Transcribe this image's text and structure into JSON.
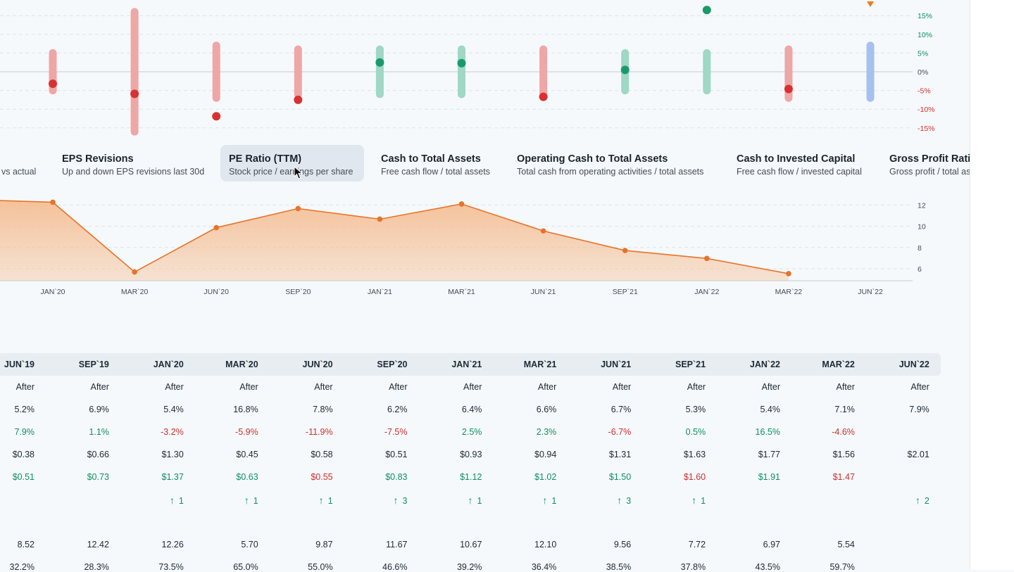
{
  "colors": {
    "pos_dot": "#1a9a6b",
    "pos_bar": "#9fd8c4",
    "neg_dot": "#d9312f",
    "neg_bar": "#efa6a6",
    "future_bar": "#a6c0f0",
    "future_marker": "#f07a20",
    "area_line": "#e8732b",
    "area_fill": "#f5b888",
    "pos_text": "#0f8f5e",
    "neg_text": "#d02d2d"
  },
  "chart_data": [
    {
      "type": "range-dot",
      "y_ticks": [
        "15%",
        "10%",
        "5%",
        "0%",
        "-5%",
        "-10%",
        "-15%"
      ],
      "ylim": [
        -16,
        17
      ],
      "points": [
        {
          "x_index": 0,
          "low": -5,
          "high": 5,
          "value": -3.2,
          "sign": "neg"
        },
        {
          "x_index": 1,
          "low": -16,
          "high": 16,
          "value": -5.9,
          "sign": "neg"
        },
        {
          "x_index": 2,
          "low": -7,
          "high": 7,
          "value": -11.9,
          "sign": "neg"
        },
        {
          "x_index": 3,
          "low": -6,
          "high": 6,
          "value": -7.5,
          "sign": "neg"
        },
        {
          "x_index": 4,
          "low": -6,
          "high": 6,
          "value": 2.5,
          "sign": "pos"
        },
        {
          "x_index": 5,
          "low": -6,
          "high": 6,
          "value": 2.3,
          "sign": "pos"
        },
        {
          "x_index": 6,
          "low": -6,
          "high": 6,
          "value": -6.7,
          "sign": "neg"
        },
        {
          "x_index": 7,
          "low": -5,
          "high": 5,
          "value": 0.5,
          "sign": "pos"
        },
        {
          "x_index": 8,
          "low": -5,
          "high": 5,
          "value": 16.5,
          "sign": "pos"
        },
        {
          "x_index": 9,
          "low": -7,
          "high": 6,
          "value": -4.6,
          "sign": "neg"
        },
        {
          "x_index": 10,
          "low": -7,
          "high": 7,
          "value": null,
          "sign": "future"
        }
      ]
    },
    {
      "type": "area",
      "x": [
        "JAN`20",
        "MAR`20",
        "JUN`20",
        "SEP`20",
        "JAN`21",
        "MAR`21",
        "JUN`21",
        "SEP`21",
        "JAN`22",
        "MAR`22",
        "JUN`22"
      ],
      "y": [
        12.26,
        5.7,
        9.87,
        11.67,
        10.67,
        12.1,
        9.56,
        7.72,
        6.97,
        5.54,
        null
      ],
      "prev_y": 12.42,
      "y_ticks": [
        12,
        10,
        8,
        6
      ],
      "ylim": [
        4.8,
        13.5
      ]
    }
  ],
  "tabs": [
    {
      "title": "",
      "desc": "vs actual"
    },
    {
      "title": "EPS Revisions",
      "desc": "Up and down EPS revisions last 30d"
    },
    {
      "title": "PE Ratio (TTM)",
      "desc": "Stock price / earnings per share",
      "active": true
    },
    {
      "title": "Cash to Total Assets",
      "desc": "Free cash flow / total assets"
    },
    {
      "title": "Operating Cash to Total Assets",
      "desc": "Total cash from operating activities / total assets"
    },
    {
      "title": "Cash to Invested Capital",
      "desc": "Free cash flow / invested capital"
    },
    {
      "title": "Gross Profit Ratio",
      "desc": "Gross profit / total assets"
    }
  ],
  "table": {
    "columns": [
      "JUN`19",
      "SEP`19",
      "JAN`20",
      "MAR`20",
      "JUN`20",
      "SEP`20",
      "JAN`21",
      "MAR`21",
      "JUN`21",
      "SEP`21",
      "JAN`22",
      "MAR`22",
      "JUN`22"
    ],
    "rows": [
      {
        "cells": [
          {
            "t": "After",
            "c": "neu"
          },
          {
            "t": "After",
            "c": "neu"
          },
          {
            "t": "After",
            "c": "neu"
          },
          {
            "t": "After",
            "c": "neu"
          },
          {
            "t": "After",
            "c": "neu"
          },
          {
            "t": "After",
            "c": "neu"
          },
          {
            "t": "After",
            "c": "neu"
          },
          {
            "t": "After",
            "c": "neu"
          },
          {
            "t": "After",
            "c": "neu"
          },
          {
            "t": "After",
            "c": "neu"
          },
          {
            "t": "After",
            "c": "neu"
          },
          {
            "t": "After",
            "c": "neu"
          },
          {
            "t": "After",
            "c": "neu"
          }
        ]
      },
      {
        "cells": [
          {
            "t": "5.2%",
            "c": "neu"
          },
          {
            "t": "6.9%",
            "c": "neu"
          },
          {
            "t": "5.4%",
            "c": "neu"
          },
          {
            "t": "16.8%",
            "c": "neu"
          },
          {
            "t": "7.8%",
            "c": "neu"
          },
          {
            "t": "6.2%",
            "c": "neu"
          },
          {
            "t": "6.4%",
            "c": "neu"
          },
          {
            "t": "6.6%",
            "c": "neu"
          },
          {
            "t": "6.7%",
            "c": "neu"
          },
          {
            "t": "5.3%",
            "c": "neu"
          },
          {
            "t": "5.4%",
            "c": "neu"
          },
          {
            "t": "7.1%",
            "c": "neu"
          },
          {
            "t": "7.9%",
            "c": "neu"
          }
        ]
      },
      {
        "cells": [
          {
            "t": "7.9%",
            "c": "pos"
          },
          {
            "t": "1.1%",
            "c": "pos"
          },
          {
            "t": "-3.2%",
            "c": "neg"
          },
          {
            "t": "-5.9%",
            "c": "neg"
          },
          {
            "t": "-11.9%",
            "c": "neg"
          },
          {
            "t": "-7.5%",
            "c": "neg"
          },
          {
            "t": "2.5%",
            "c": "pos"
          },
          {
            "t": "2.3%",
            "c": "pos"
          },
          {
            "t": "-6.7%",
            "c": "neg"
          },
          {
            "t": "0.5%",
            "c": "pos"
          },
          {
            "t": "16.5%",
            "c": "pos"
          },
          {
            "t": "-4.6%",
            "c": "neg"
          },
          {
            "t": "",
            "c": "neu"
          }
        ]
      },
      {
        "cells": [
          {
            "t": "$0.38",
            "c": "neu"
          },
          {
            "t": "$0.66",
            "c": "neu"
          },
          {
            "t": "$1.30",
            "c": "neu"
          },
          {
            "t": "$0.45",
            "c": "neu"
          },
          {
            "t": "$0.58",
            "c": "neu"
          },
          {
            "t": "$0.51",
            "c": "neu"
          },
          {
            "t": "$0.93",
            "c": "neu"
          },
          {
            "t": "$0.94",
            "c": "neu"
          },
          {
            "t": "$1.31",
            "c": "neu"
          },
          {
            "t": "$1.63",
            "c": "neu"
          },
          {
            "t": "$1.77",
            "c": "neu"
          },
          {
            "t": "$1.56",
            "c": "neu"
          },
          {
            "t": "$2.01",
            "c": "neu"
          }
        ]
      },
      {
        "cells": [
          {
            "t": "$0.51",
            "c": "pos"
          },
          {
            "t": "$0.73",
            "c": "pos"
          },
          {
            "t": "$1.37",
            "c": "pos"
          },
          {
            "t": "$0.63",
            "c": "pos"
          },
          {
            "t": "$0.55",
            "c": "neg"
          },
          {
            "t": "$0.83",
            "c": "pos"
          },
          {
            "t": "$1.12",
            "c": "pos"
          },
          {
            "t": "$1.02",
            "c": "pos"
          },
          {
            "t": "$1.50",
            "c": "pos"
          },
          {
            "t": "$1.60",
            "c": "neg"
          },
          {
            "t": "$1.91",
            "c": "pos"
          },
          {
            "t": "$1.47",
            "c": "neg"
          },
          {
            "t": "",
            "c": "neu"
          }
        ]
      },
      {
        "cells": [
          {
            "t": "",
            "c": "neu"
          },
          {
            "t": "",
            "c": "neu"
          },
          {
            "t": "1",
            "c": "pos",
            "arrow": "↑"
          },
          {
            "t": "1",
            "c": "pos",
            "arrow": "↑"
          },
          {
            "t": "1",
            "c": "pos",
            "arrow": "↑"
          },
          {
            "t": "3",
            "c": "pos",
            "arrow": "↑"
          },
          {
            "t": "1",
            "c": "pos",
            "arrow": "↑"
          },
          {
            "t": "1",
            "c": "pos",
            "arrow": "↑"
          },
          {
            "t": "3",
            "c": "pos",
            "arrow": "↑"
          },
          {
            "t": "1",
            "c": "pos",
            "arrow": "↑"
          },
          {
            "t": "",
            "c": "neu"
          },
          {
            "t": "",
            "c": "neu"
          },
          {
            "t": "2",
            "c": "pos",
            "arrow": "↑"
          }
        ]
      },
      {
        "cells": [
          {
            "t": "",
            "c": "neu"
          },
          {
            "t": "",
            "c": "neu"
          },
          {
            "t": "",
            "c": "neu"
          },
          {
            "t": "",
            "c": "neu"
          },
          {
            "t": "",
            "c": "neu"
          },
          {
            "t": "",
            "c": "neu"
          },
          {
            "t": "",
            "c": "neu"
          },
          {
            "t": "",
            "c": "neu"
          },
          {
            "t": "",
            "c": "neu"
          },
          {
            "t": "",
            "c": "neu"
          },
          {
            "t": "",
            "c": "neu"
          },
          {
            "t": "",
            "c": "neu"
          },
          {
            "t": "",
            "c": "neu"
          }
        ]
      },
      {
        "cells": [
          {
            "t": "8.52",
            "c": "neu"
          },
          {
            "t": "12.42",
            "c": "neu"
          },
          {
            "t": "12.26",
            "c": "neu"
          },
          {
            "t": "5.70",
            "c": "neu"
          },
          {
            "t": "9.87",
            "c": "neu"
          },
          {
            "t": "11.67",
            "c": "neu"
          },
          {
            "t": "10.67",
            "c": "neu"
          },
          {
            "t": "12.10",
            "c": "neu"
          },
          {
            "t": "9.56",
            "c": "neu"
          },
          {
            "t": "7.72",
            "c": "neu"
          },
          {
            "t": "6.97",
            "c": "neu"
          },
          {
            "t": "5.54",
            "c": "neu"
          },
          {
            "t": "",
            "c": "neu"
          }
        ]
      },
      {
        "cells": [
          {
            "t": "32.2%",
            "c": "neu"
          },
          {
            "t": "28.3%",
            "c": "neu"
          },
          {
            "t": "73.5%",
            "c": "neu"
          },
          {
            "t": "65.0%",
            "c": "neu"
          },
          {
            "t": "55.0%",
            "c": "neu"
          },
          {
            "t": "46.6%",
            "c": "neu"
          },
          {
            "t": "39.2%",
            "c": "neu"
          },
          {
            "t": "36.4%",
            "c": "neu"
          },
          {
            "t": "38.5%",
            "c": "neu"
          },
          {
            "t": "37.8%",
            "c": "neu"
          },
          {
            "t": "43.5%",
            "c": "neu"
          },
          {
            "t": "59.7%",
            "c": "neu"
          },
          {
            "t": "",
            "c": "neu"
          }
        ]
      }
    ]
  }
}
